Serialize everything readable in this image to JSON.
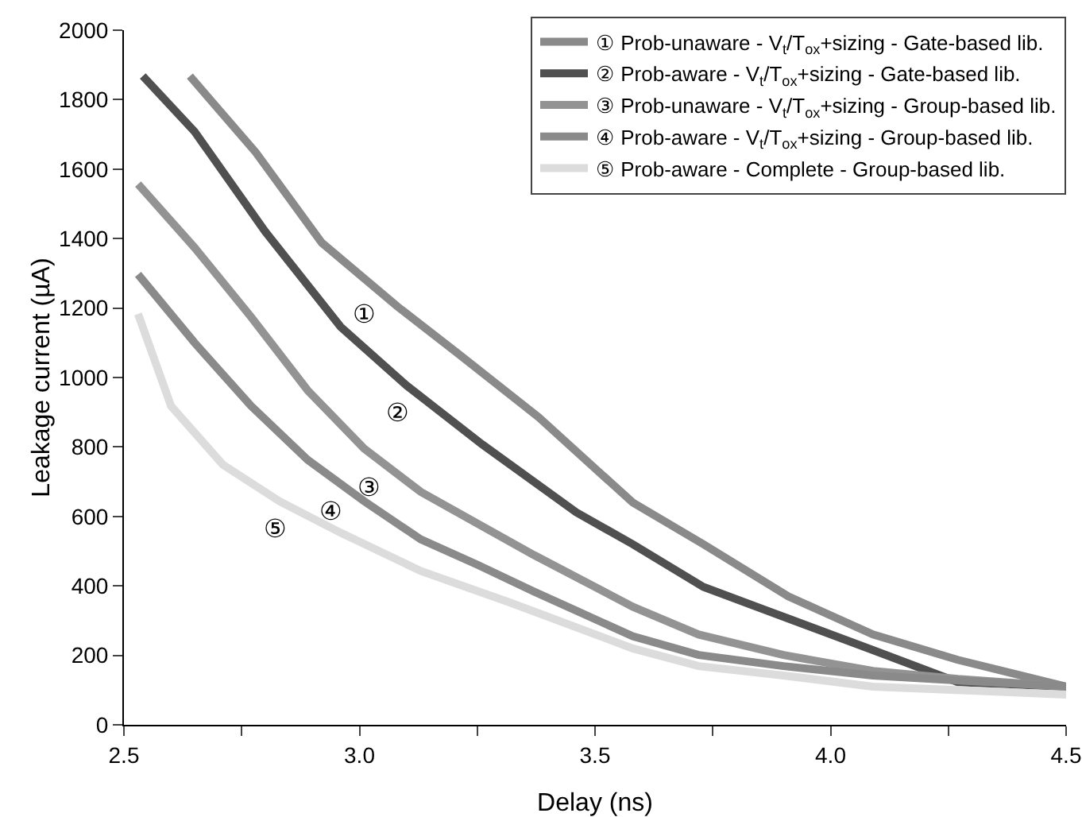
{
  "chart_data": {
    "type": "line",
    "xlabel": "Delay (ns)",
    "ylabel": "Leakage current (µA)",
    "xlim": [
      2.5,
      4.5
    ],
    "xticks": [
      2.5,
      {
        "value": 2.75,
        "label": null
      },
      {
        "value": 3.0,
        "label": "3.0"
      },
      {
        "value": 3.25,
        "label": null
      },
      3.5,
      {
        "value": 3.75,
        "label": null
      },
      {
        "value": 4.0,
        "label": "4.0"
      },
      {
        "value": 4.25,
        "label": null
      },
      4.5
    ],
    "ylim": [
      0,
      2000
    ],
    "yticks": [
      0,
      200,
      400,
      600,
      800,
      1000,
      1200,
      1400,
      1600,
      1800,
      2000
    ],
    "grid": false,
    "legend": "top right",
    "marker": "none",
    "line_style": "solid",
    "series": [
      {
        "name": "① Prob-unaware - V$_{t}$/T$_{ox}$+sizing - Gate-based lib.",
        "color": "#8a8a8a",
        "x": [
          2.64,
          2.78,
          2.92,
          3.08,
          3.21,
          3.38,
          3.58,
          3.73,
          3.91,
          4.09,
          4.27,
          4.5
        ],
        "values": [
          1868,
          1648,
          1388,
          1205,
          1068,
          886,
          640,
          520,
          370,
          260,
          187,
          110
        ]
      },
      {
        "name": "② Prob-aware - V$_{t}$/T$_{ox}$+sizing - Gate-based lib.",
        "color": "#505050",
        "x": [
          2.54,
          2.65,
          2.8,
          2.96,
          3.1,
          3.26,
          3.46,
          3.58,
          3.73,
          3.91,
          4.09,
          4.27,
          4.5
        ],
        "values": [
          1868,
          1708,
          1420,
          1146,
          977,
          808,
          612,
          520,
          397,
          306,
          215,
          123,
          110
        ]
      },
      {
        "name": "③ Prob-unaware - V$_{t}$/T$_{ox}$+sizing - Group-based lib.",
        "color": "#939393",
        "x": [
          2.53,
          2.65,
          2.77,
          2.89,
          3.01,
          3.13,
          3.25,
          3.37,
          3.58,
          3.72,
          3.9,
          4.09,
          4.27,
          4.5
        ],
        "values": [
          1557,
          1374,
          1174,
          963,
          795,
          671,
          580,
          489,
          340,
          260,
          201,
          155,
          132,
          110
        ]
      },
      {
        "name": "④ Prob-aware - V$_{t}$/T$_{ox}$+sizing - Group-based lib.",
        "color": "#8a8a8a",
        "x": [
          2.53,
          2.65,
          2.77,
          2.89,
          3.01,
          3.13,
          3.25,
          3.37,
          3.58,
          3.72,
          3.9,
          4.09,
          4.5
        ],
        "values": [
          1297,
          1100,
          918,
          763,
          644,
          534,
          461,
          384,
          255,
          201,
          169,
          142,
          110
        ]
      },
      {
        "name": "⑤ Prob-aware - Complete - Group-based lib.",
        "color": "#dcdcdc",
        "x": [
          2.53,
          2.6,
          2.71,
          2.83,
          2.96,
          3.13,
          3.32,
          3.58,
          3.72,
          3.9,
          4.09,
          4.5
        ],
        "values": [
          1183,
          918,
          749,
          644,
          553,
          443,
          352,
          220,
          169,
          142,
          110,
          87
        ]
      }
    ],
    "annotations": [
      {
        "text": "①",
        "x": 3.05,
        "y": 1240
      },
      {
        "text": "②",
        "x": 3.12,
        "y": 956
      },
      {
        "text": "③",
        "x": 3.06,
        "y": 743
      },
      {
        "text": "④",
        "x": 2.98,
        "y": 674
      },
      {
        "text": "⑤",
        "x": 2.86,
        "y": 623
      }
    ]
  }
}
